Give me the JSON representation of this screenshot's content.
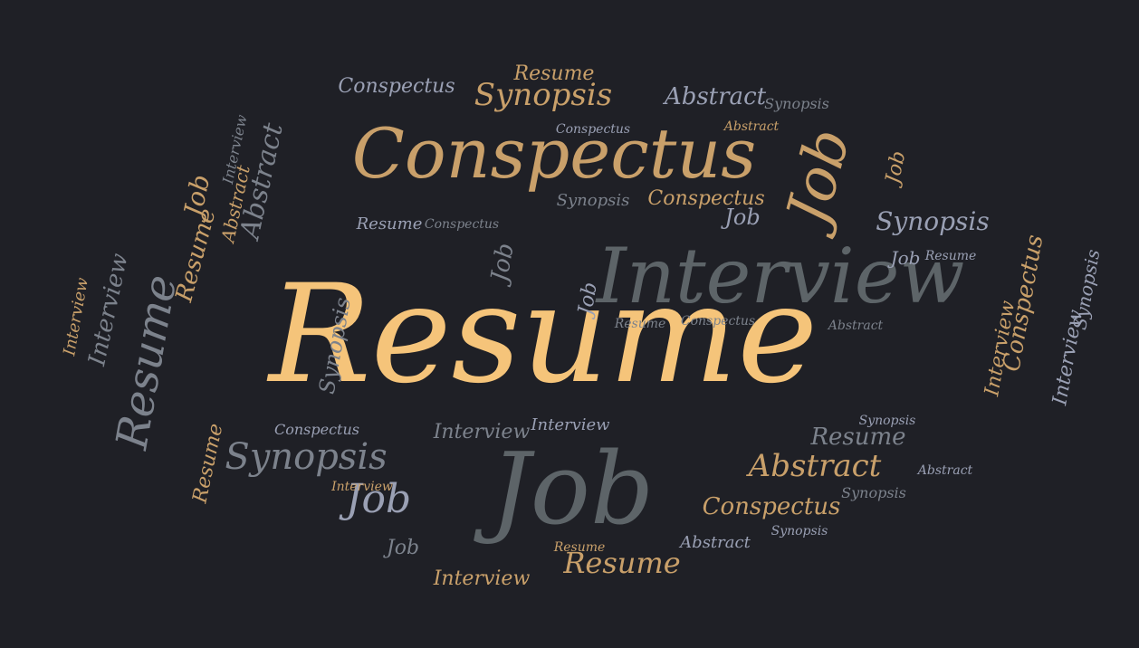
{
  "palette": {
    "background": "#1f2026",
    "gold": "#f5c47a",
    "tan": "#c9a06a",
    "slate": "#5d6468",
    "grey": "#7c828c",
    "lavender": "#9aa0b4"
  },
  "words": [
    {
      "text": "Resume",
      "color": "gold",
      "emphasis": "largest"
    },
    {
      "text": "Conspectus",
      "color": "tan"
    },
    {
      "text": "Interview",
      "color": "slate"
    },
    {
      "text": "Job",
      "color": "slate"
    },
    {
      "text": "Synopsis",
      "color": "grey"
    },
    {
      "text": "Abstract",
      "color": "tan"
    },
    {
      "text": "Resume",
      "color": "grey"
    },
    {
      "text": "Job",
      "color": "tan"
    },
    {
      "text": "Synopsis",
      "color": "tan"
    },
    {
      "text": "Abstract",
      "color": "lavender"
    },
    {
      "text": "Conspectus",
      "color": "tan"
    },
    {
      "text": "Resume",
      "color": "tan"
    },
    {
      "text": "Interview",
      "color": "tan"
    },
    {
      "text": "Job",
      "color": "lavender"
    },
    {
      "text": "Synopsis",
      "color": "lavender"
    },
    {
      "text": "Conspectus",
      "color": "lavender"
    },
    {
      "text": "Resume",
      "color": "grey"
    },
    {
      "text": "Interview",
      "color": "grey"
    },
    {
      "text": "Abstract",
      "color": "grey"
    },
    {
      "text": "Job",
      "color": "tan"
    },
    {
      "text": "Resume",
      "color": "tan"
    },
    {
      "text": "Conspectus",
      "color": "tan"
    },
    {
      "text": "Interview",
      "color": "grey"
    },
    {
      "text": "Synopsis",
      "color": "grey"
    },
    {
      "text": "Resume",
      "color": "tan"
    },
    {
      "text": "Interview",
      "color": "tan"
    },
    {
      "text": "Job",
      "color": "lavender"
    },
    {
      "text": "Abstract",
      "color": "lavender"
    },
    {
      "text": "Conspectus",
      "color": "lavender"
    },
    {
      "text": "Synopsis",
      "color": "lavender"
    },
    {
      "text": "Job",
      "color": "grey"
    },
    {
      "text": "Interview",
      "color": "lavender"
    },
    {
      "text": "Resume",
      "color": "lavender"
    },
    {
      "text": "Conspectus",
      "color": "lavender"
    },
    {
      "text": "Abstract",
      "color": "tan"
    },
    {
      "text": "Synopsis",
      "color": "lavender"
    },
    {
      "text": "Job",
      "color": "lavender"
    },
    {
      "text": "Resume",
      "color": "tan"
    },
    {
      "text": "Synopsis",
      "color": "grey"
    },
    {
      "text": "Resume",
      "color": "lavender"
    },
    {
      "text": "Interview",
      "color": "tan"
    },
    {
      "text": "Job",
      "color": "grey"
    },
    {
      "text": "Abstract",
      "color": "tan"
    },
    {
      "text": "Synopsis",
      "color": "grey"
    },
    {
      "text": "Conspectus",
      "color": "tan"
    },
    {
      "text": "Interview",
      "color": "lavender"
    },
    {
      "text": "Job",
      "color": "tan"
    },
    {
      "text": "Resume",
      "color": "grey"
    },
    {
      "text": "Synopsis",
      "color": "lavender"
    },
    {
      "text": "Abstract",
      "color": "grey"
    },
    {
      "text": "Conspectus",
      "color": "grey"
    },
    {
      "text": "Interview",
      "color": "tan"
    },
    {
      "text": "Job",
      "color": "lavender"
    },
    {
      "text": "Synopsis",
      "color": "grey"
    },
    {
      "text": "Conspectus",
      "color": "grey"
    },
    {
      "text": "Interview",
      "color": "grey"
    },
    {
      "text": "Resume",
      "color": "tan"
    },
    {
      "text": "Abstract",
      "color": "lavender"
    }
  ]
}
